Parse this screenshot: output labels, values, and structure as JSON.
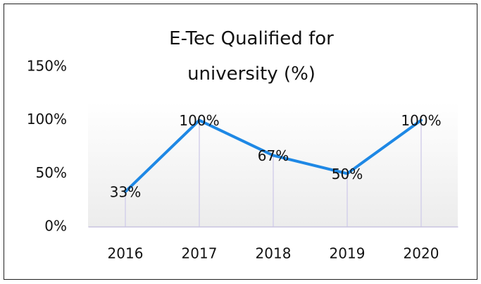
{
  "chart_data": {
    "type": "line",
    "title": "E-Tec Qualified for university (%)",
    "categories": [
      "2016",
      "2017",
      "2018",
      "2019",
      "2020"
    ],
    "values": [
      33,
      100,
      67,
      50,
      100
    ],
    "value_labels": [
      "33%",
      "100%",
      "67%",
      "50%",
      "100%"
    ],
    "color": "#1e88e5",
    "ylim": [
      0,
      150
    ],
    "yticks": [
      {
        "value": 0,
        "label": "0%"
      },
      {
        "value": 50,
        "label": "50%"
      },
      {
        "value": 100,
        "label": "100%"
      },
      {
        "value": 150,
        "label": "150%"
      }
    ]
  }
}
